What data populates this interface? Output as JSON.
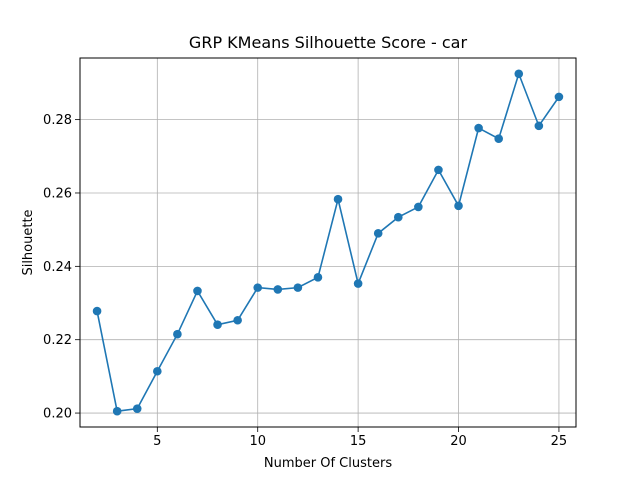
{
  "chart_data": {
    "type": "line",
    "title": "GRP KMeans Silhouette Score - car",
    "xlabel": "Number Of Clusters",
    "ylabel": "Silhouette",
    "xlim": [
      1.15,
      25.85
    ],
    "ylim": [
      0.1962,
      0.2968
    ],
    "xticks": [
      5,
      10,
      15,
      20,
      25
    ],
    "xtick_labels": [
      "5",
      "10",
      "15",
      "20",
      "25"
    ],
    "yticks": [
      0.2,
      0.22,
      0.24,
      0.26,
      0.28
    ],
    "ytick_labels": [
      "0.20",
      "0.22",
      "0.24",
      "0.26",
      "0.28"
    ],
    "grid": true,
    "marker": "circle",
    "series": [
      {
        "color": "#1f77b4",
        "x": [
          2,
          3,
          4,
          5,
          6,
          7,
          8,
          9,
          10,
          11,
          12,
          13,
          14,
          15,
          16,
          17,
          18,
          19,
          20,
          21,
          22,
          23,
          24,
          25
        ],
        "y": [
          0.2278,
          0.2005,
          0.2012,
          0.2114,
          0.2215,
          0.2333,
          0.2241,
          0.2253,
          0.2342,
          0.2337,
          0.2342,
          0.237,
          0.2583,
          0.2353,
          0.249,
          0.2534,
          0.2562,
          0.2663,
          0.2565,
          0.2777,
          0.2748,
          0.2925,
          0.2783,
          0.2862
        ]
      }
    ]
  }
}
